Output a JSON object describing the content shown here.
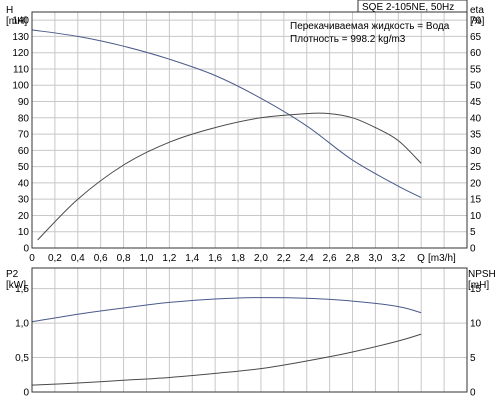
{
  "chart_data": [
    {
      "type": "line",
      "title": "SQE 2-105NE, 50Hz",
      "info_lines": [
        "Перекачиваемая жидкость = Вода",
        "Плотность = 998.2 kg/m3"
      ],
      "xlabel": "Q",
      "xunit": "[m3/h]",
      "xlim": [
        0,
        3.8
      ],
      "x_ticks": [
        "0",
        "0,2",
        "0,4",
        "0,6",
        "0,8",
        "1,0",
        "1,2",
        "1,4",
        "1,6",
        "1,8",
        "2,0",
        "2,2",
        "2,4",
        "2,6",
        "2,8",
        "3,0",
        "3,2"
      ],
      "ylabel_left": "H",
      "yunit_left": "[mH]",
      "ylim_left": [
        0,
        145
      ],
      "y_ticks_left": [
        "0",
        "10",
        "20",
        "30",
        "40",
        "50",
        "60",
        "70",
        "80",
        "90",
        "100",
        "110",
        "120",
        "130",
        "140"
      ],
      "ylabel_right": "eta",
      "yunit_right": "[%]",
      "ylim_right": [
        0,
        72.5
      ],
      "y_ticks_right": [
        "0",
        "5",
        "10",
        "15",
        "20",
        "25",
        "30",
        "35",
        "40",
        "45",
        "50",
        "55",
        "60",
        "65",
        "70"
      ],
      "grid": true,
      "series": [
        {
          "axis": "left",
          "color": "#4a5a8a",
          "x": [
            0,
            0.4,
            0.8,
            1.2,
            1.6,
            2.0,
            2.4,
            2.8,
            3.2,
            3.4
          ],
          "values": [
            134,
            130,
            124,
            116,
            106,
            92,
            75,
            54,
            38,
            31
          ]
        },
        {
          "axis": "right",
          "color": "#4a4a4a",
          "x": [
            0.05,
            0.4,
            0.8,
            1.2,
            1.6,
            2.0,
            2.4,
            2.6,
            2.8,
            3.0,
            3.2,
            3.4
          ],
          "values": [
            2.5,
            15,
            25.5,
            32.5,
            37,
            40,
            41.3,
            41.3,
            40,
            37,
            33,
            26
          ]
        }
      ]
    },
    {
      "type": "line",
      "xlim": [
        0,
        3.8
      ],
      "ylabel_left": "P2",
      "yunit_left": "[kW]",
      "ylim_left": [
        0,
        1.8
      ],
      "y_ticks_left": [
        "0",
        "0,5",
        "1,0",
        "1,5"
      ],
      "ylabel_right": "NPSH",
      "yunit_right": "[mH]",
      "ylim_right": [
        0,
        18
      ],
      "y_ticks_right": [
        "0",
        "5",
        "10",
        "15"
      ],
      "grid": true,
      "series": [
        {
          "axis": "left",
          "color": "#4a5a8a",
          "x": [
            0,
            0.4,
            0.8,
            1.2,
            1.6,
            2.0,
            2.4,
            2.8,
            3.2,
            3.4
          ],
          "values": [
            1.02,
            1.13,
            1.22,
            1.3,
            1.35,
            1.37,
            1.36,
            1.32,
            1.24,
            1.15
          ]
        },
        {
          "axis": "left",
          "color": "#4a4a4a",
          "x": [
            0,
            0.4,
            0.8,
            1.2,
            1.6,
            2.0,
            2.4,
            2.8,
            3.2,
            3.4
          ],
          "values": [
            0.1,
            0.13,
            0.17,
            0.21,
            0.27,
            0.34,
            0.45,
            0.58,
            0.74,
            0.84
          ]
        }
      ]
    }
  ]
}
